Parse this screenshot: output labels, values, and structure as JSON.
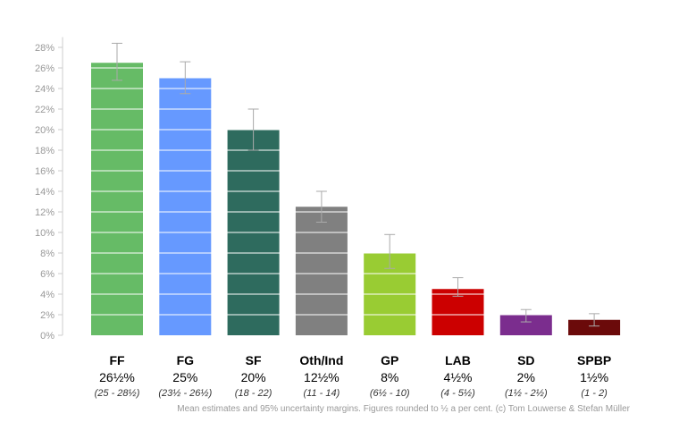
{
  "chart_data": {
    "type": "bar",
    "title": "",
    "xlabel": "",
    "ylabel": "",
    "ylim": [
      0,
      29
    ],
    "yticks": [
      "0%",
      "2%",
      "4%",
      "6%",
      "8%",
      "10%",
      "12%",
      "14%",
      "16%",
      "18%",
      "20%",
      "22%",
      "24%",
      "26%",
      "28%"
    ],
    "ytick_values": [
      0,
      2,
      4,
      6,
      8,
      10,
      12,
      14,
      16,
      18,
      20,
      22,
      24,
      26,
      28
    ],
    "grid": "horizontal white lines across bars",
    "categories": [
      "FF",
      "FG",
      "SF",
      "Oth/Ind",
      "GP",
      "LAB",
      "SD",
      "SPBP"
    ],
    "values": [
      26.5,
      25,
      20,
      12.5,
      8,
      4.5,
      2,
      1.5
    ],
    "error_low": [
      24.8,
      23.5,
      18,
      11,
      6.5,
      3.8,
      1.3,
      0.9
    ],
    "error_high": [
      28.4,
      26.6,
      22,
      14,
      9.8,
      5.6,
      2.5,
      2.1
    ],
    "value_labels": [
      "26½%",
      "25%",
      "20%",
      "12½%",
      "8%",
      "4½%",
      "2%",
      "1½%"
    ],
    "range_labels": [
      "(25 - 28½)",
      "(23½ - 26½)",
      "(18 - 22)",
      "(11 - 14)",
      "(6½ - 10)",
      "(4 - 5½)",
      "(1½ - 2½)",
      "(1 - 2)"
    ],
    "colors": [
      "#66bb66",
      "#6699ff",
      "#2e6b5e",
      "#808080",
      "#99cc33",
      "#cc0000",
      "#7b2d8e",
      "#6b0a0a"
    ],
    "footnote": "Mean estimates and 95% uncertainty margins. Figures rounded to ½ a per cent. (c) Tom Louwerse & Stefan Müller"
  }
}
